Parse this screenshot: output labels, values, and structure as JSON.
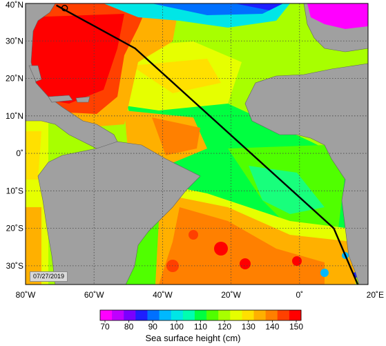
{
  "date_label": "07/27/2019",
  "colorbar": {
    "title": "Sea surface height (cm)",
    "ticks": [
      "70",
      "80",
      "90",
      "100",
      "110",
      "120",
      "130",
      "140",
      "150"
    ],
    "colors": [
      "#ff00ff",
      "#bf00ff",
      "#7a00ff",
      "#1e1eff",
      "#0070ff",
      "#00b8ff",
      "#00e6e6",
      "#00ffb0",
      "#00ff40",
      "#50ff00",
      "#a8ff00",
      "#e6ff00",
      "#ffe000",
      "#ffb000",
      "#ff8000",
      "#ff4000",
      "#ff0000"
    ]
  },
  "map": {
    "lon_range": [
      -80,
      20
    ],
    "lat_range": [
      -35,
      40
    ],
    "lon_ticks": [
      {
        "value": -80,
        "label": "80˚W"
      },
      {
        "value": -60,
        "label": "60˚W"
      },
      {
        "value": -40,
        "label": "40˚W"
      },
      {
        "value": -20,
        "label": "20˚W"
      },
      {
        "value": 0,
        "label": "0˚"
      },
      {
        "value": 20,
        "label": "20˚E"
      }
    ],
    "lat_ticks": [
      {
        "value": 40,
        "label": "40˚N"
      },
      {
        "value": 30,
        "label": "30˚N"
      },
      {
        "value": 20,
        "label": "20˚N"
      },
      {
        "value": 10,
        "label": "10˚N"
      },
      {
        "value": 0,
        "label": "0˚"
      },
      {
        "value": -10,
        "label": "10˚S"
      },
      {
        "value": -20,
        "label": "20˚S"
      },
      {
        "value": -30,
        "label": "30˚S"
      }
    ],
    "track": [
      [
        -71,
        39.5
      ],
      [
        -48,
        28
      ],
      [
        10,
        -20
      ],
      [
        17,
        -35
      ]
    ],
    "land_color": "#a0a0a0",
    "grid": "dotted"
  }
}
